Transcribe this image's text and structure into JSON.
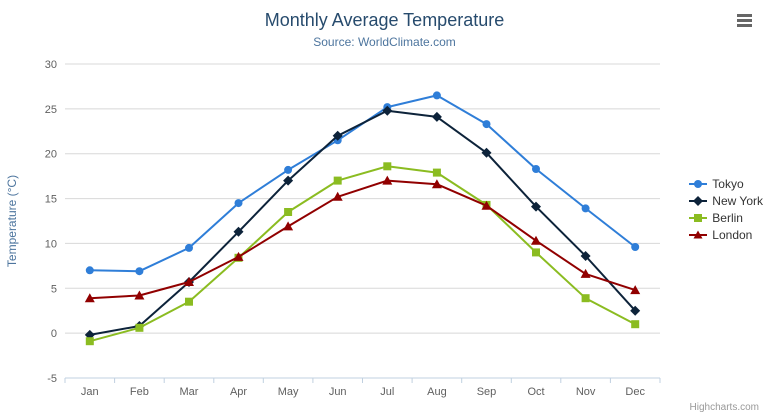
{
  "chart_data": {
    "type": "line",
    "title": "Monthly Average Temperature",
    "subtitle": "Source: WorldClimate.com",
    "categories": [
      "Jan",
      "Feb",
      "Mar",
      "Apr",
      "May",
      "Jun",
      "Jul",
      "Aug",
      "Sep",
      "Oct",
      "Nov",
      "Dec"
    ],
    "xlabel": "",
    "ylabel": "Temperature (°C)",
    "ylim": [
      -5,
      30
    ],
    "ytick_interval": 5,
    "grid": true,
    "legend_position": "right",
    "series": [
      {
        "name": "Tokyo",
        "color": "#2f7ed8",
        "marker": "circle",
        "values": [
          7.0,
          6.9,
          9.5,
          14.5,
          18.2,
          21.5,
          25.2,
          26.5,
          23.3,
          18.3,
          13.9,
          9.6
        ]
      },
      {
        "name": "New York",
        "color": "#0d233a",
        "marker": "diamond",
        "values": [
          -0.2,
          0.8,
          5.7,
          11.3,
          17.0,
          22.0,
          24.8,
          24.1,
          20.1,
          14.1,
          8.6,
          2.5
        ]
      },
      {
        "name": "Berlin",
        "color": "#8bbc21",
        "marker": "square",
        "values": [
          -0.9,
          0.6,
          3.5,
          8.4,
          13.5,
          17.0,
          18.6,
          17.9,
          14.3,
          9.0,
          3.9,
          1.0
        ]
      },
      {
        "name": "London",
        "color": "#910000",
        "marker": "triangle",
        "values": [
          3.9,
          4.2,
          5.7,
          8.5,
          11.9,
          15.2,
          17.0,
          16.6,
          14.2,
          10.3,
          6.6,
          4.8
        ]
      }
    ],
    "colors": {
      "title": "#274b6d",
      "subtitle": "#4d759e",
      "gridline": "#d8d8d8",
      "axis_line": "#c0d0e0",
      "tick_label": "#606060"
    }
  },
  "credits": {
    "label": "Highcharts.com"
  }
}
